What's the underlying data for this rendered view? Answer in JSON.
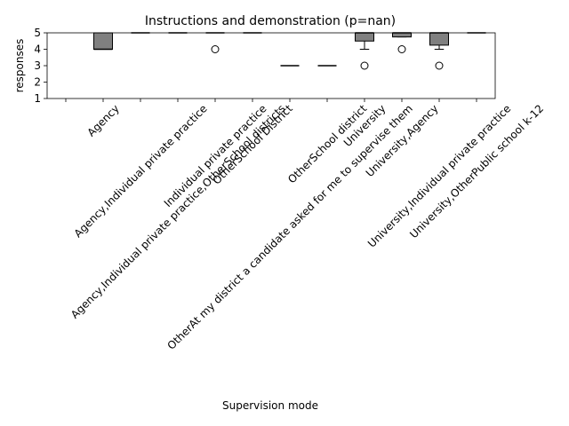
{
  "chart_data": {
    "type": "box",
    "title": "Instructions and demonstration (p=nan)",
    "x_label": "Supervision mode",
    "y_label": "responses",
    "categories": [
      null,
      "Agency",
      "Agency,Individual private practice",
      "Agency,Individual private practice,OtherSchool districts",
      "Individual private practice",
      "OtherSchool District",
      "OtherAt my district a candidate asked for me to supervise them",
      "OtherSchool district",
      "University",
      "University,Agency",
      "University,Individual private practice",
      "University,OtherPublic school k-12"
    ],
    "boxes": [
      null,
      {
        "whislo": 4,
        "q1": 4,
        "median": 4,
        "q3": 5,
        "whishi": 5,
        "fliers": []
      },
      {
        "whislo": 5,
        "q1": 5,
        "median": 5,
        "q3": 5,
        "whishi": 5,
        "fliers": []
      },
      {
        "whislo": 5,
        "q1": 5,
        "median": 5,
        "q3": 5,
        "whishi": 5,
        "fliers": []
      },
      {
        "whislo": 5,
        "q1": 5,
        "median": 5,
        "q3": 5,
        "whishi": 5,
        "fliers": [
          4
        ]
      },
      {
        "whislo": 5,
        "q1": 5,
        "median": 5,
        "q3": 5,
        "whishi": 5,
        "fliers": []
      },
      {
        "whislo": 3,
        "q1": 3,
        "median": 3,
        "q3": 3,
        "whishi": 3,
        "fliers": []
      },
      {
        "whislo": 3,
        "q1": 3,
        "median": 3,
        "q3": 3,
        "whishi": 3,
        "fliers": []
      },
      {
        "whislo": 4,
        "q1": 4.5,
        "median": 5,
        "q3": 5,
        "whishi": 5,
        "fliers": [
          3
        ]
      },
      {
        "whislo": 4.75,
        "q1": 4.75,
        "median": 5,
        "q3": 5,
        "whishi": 5,
        "fliers": [
          4
        ]
      },
      {
        "whislo": 4,
        "q1": 4.25,
        "median": 5,
        "q3": 5,
        "whishi": 5,
        "fliers": [
          3
        ]
      },
      {
        "whislo": 5,
        "q1": 5,
        "median": 5,
        "q3": 5,
        "whishi": 5,
        "fliers": []
      }
    ],
    "color": "#808080",
    "ylim": [
      1,
      5
    ],
    "yticks": [
      1,
      2,
      3,
      4,
      5
    ]
  }
}
